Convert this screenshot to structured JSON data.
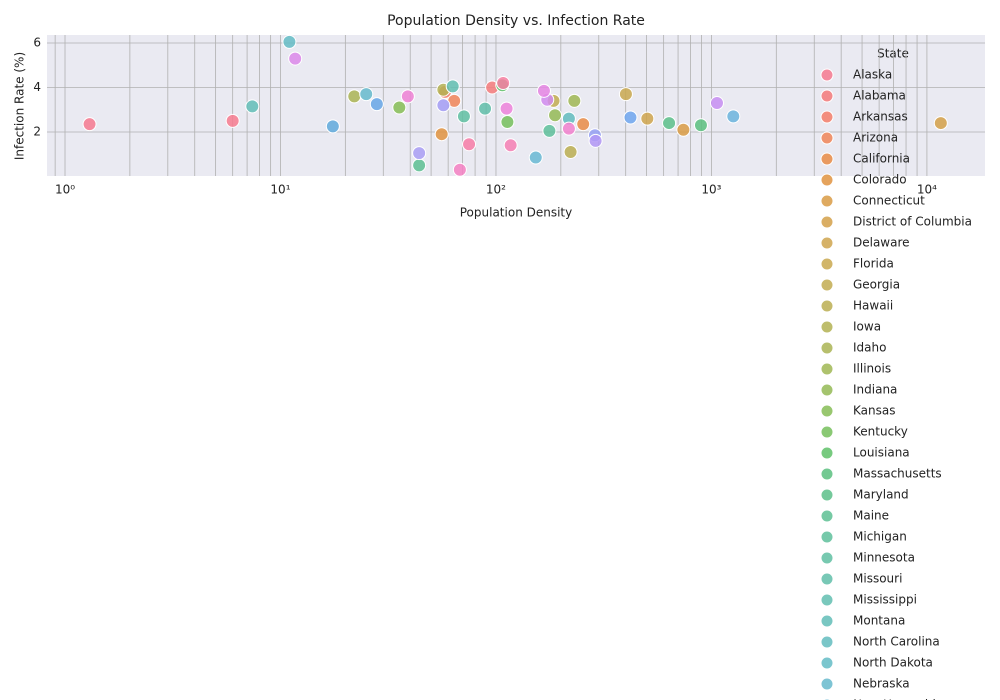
{
  "chart_data": {
    "type": "scatter",
    "title": "Population Density vs. Infection Rate",
    "x_label": "Population Density",
    "y_label": "Infection Rate (%)",
    "x_scale": "log",
    "xlim": [
      0.825,
      18600
    ],
    "ylim": [
      0.02,
      6.36
    ],
    "xticks": [
      {
        "value": 1,
        "label": "10⁰"
      },
      {
        "value": 10,
        "label": "10¹"
      },
      {
        "value": 100,
        "label": "10²"
      },
      {
        "value": 1000,
        "label": "10³"
      },
      {
        "value": 10000,
        "label": "10⁴"
      }
    ],
    "xminorticks": [
      0.9,
      2,
      3,
      4,
      5,
      6,
      7,
      8,
      9,
      20,
      30,
      40,
      50,
      60,
      70,
      80,
      90,
      200,
      300,
      400,
      500,
      600,
      700,
      800,
      900,
      2000,
      3000,
      4000,
      5000,
      6000,
      7000,
      8000,
      9000
    ],
    "yticks": [
      2,
      4,
      6
    ],
    "grid": true,
    "legend_title": "State",
    "legend_position": "right",
    "series": [
      {
        "name": "Alaska",
        "color": "#f6798f",
        "x": [
          1.3
        ],
        "values": [
          2.35
        ]
      },
      {
        "name": "Alabama",
        "color": "#f57a7a",
        "x": [
          96
        ],
        "values": [
          4.0
        ]
      },
      {
        "name": "Arkansas",
        "color": "#f47e6a",
        "x": [
          58
        ],
        "values": [
          3.8
        ]
      },
      {
        "name": "Arizona",
        "color": "#f08558",
        "x": [
          64
        ],
        "values": [
          3.4
        ]
      },
      {
        "name": "California",
        "color": "#e98c47",
        "x": [
          254
        ],
        "values": [
          2.35
        ]
      },
      {
        "name": "Colorado",
        "color": "#e0933f",
        "x": [
          56
        ],
        "values": [
          1.9
        ]
      },
      {
        "name": "Connecticut",
        "color": "#d99b44",
        "x": [
          741
        ],
        "values": [
          2.1
        ]
      },
      {
        "name": "District of Columbia",
        "color": "#d4a049",
        "x": [
          11600
        ],
        "values": [
          2.4
        ]
      },
      {
        "name": "Delaware",
        "color": "#cfa44d",
        "x": [
          504
        ],
        "values": [
          2.6
        ]
      },
      {
        "name": "Florida",
        "color": "#c9a84f",
        "x": [
          401
        ],
        "values": [
          3.7
        ]
      },
      {
        "name": "Georgia",
        "color": "#c2ab50",
        "x": [
          185
        ],
        "values": [
          3.4
        ]
      },
      {
        "name": "Hawaii",
        "color": "#bbae51",
        "x": [
          222
        ],
        "values": [
          1.1
        ]
      },
      {
        "name": "Iowa",
        "color": "#b3b152",
        "x": [
          57
        ],
        "values": [
          3.9
        ]
      },
      {
        "name": "Idaho",
        "color": "#aab453",
        "x": [
          22
        ],
        "values": [
          3.6
        ]
      },
      {
        "name": "Illinois",
        "color": "#a0b754",
        "x": [
          231
        ],
        "values": [
          3.4
        ]
      },
      {
        "name": "Indiana",
        "color": "#94ba55",
        "x": [
          188
        ],
        "values": [
          2.75
        ]
      },
      {
        "name": "Kansas",
        "color": "#86bd56",
        "x": [
          35.6
        ],
        "values": [
          3.1
        ]
      },
      {
        "name": "Kentucky",
        "color": "#75bf5c",
        "x": [
          113
        ],
        "values": [
          2.45
        ]
      },
      {
        "name": "Louisiana",
        "color": "#5fc168",
        "x": [
          107
        ],
        "values": [
          4.1
        ]
      },
      {
        "name": "Massachusetts",
        "color": "#5bbf7f",
        "x": [
          894
        ],
        "values": [
          2.3
        ]
      },
      {
        "name": "Maryland",
        "color": "#5cbf8a",
        "x": [
          636
        ],
        "values": [
          2.4
        ]
      },
      {
        "name": "Maine",
        "color": "#5dbf93",
        "x": [
          44
        ],
        "values": [
          0.5
        ]
      },
      {
        "name": "Michigan",
        "color": "#5ebf9b",
        "x": [
          177
        ],
        "values": [
          2.05
        ]
      },
      {
        "name": "Minnesota",
        "color": "#5fbfa2",
        "x": [
          71
        ],
        "values": [
          2.7
        ]
      },
      {
        "name": "Missouri",
        "color": "#60bea9",
        "x": [
          89
        ],
        "values": [
          3.05
        ]
      },
      {
        "name": "Mississippi",
        "color": "#61beb0",
        "x": [
          63
        ],
        "values": [
          4.05
        ]
      },
      {
        "name": "Montana",
        "color": "#62bdb7",
        "x": [
          7.4
        ],
        "values": [
          3.15
        ]
      },
      {
        "name": "North Carolina",
        "color": "#63bcbe",
        "x": [
          218
        ],
        "values": [
          2.6
        ]
      },
      {
        "name": "North Dakota",
        "color": "#64bcc5",
        "x": [
          11
        ],
        "values": [
          6.05
        ]
      },
      {
        "name": "Nebraska",
        "color": "#66bacc",
        "x": [
          25
        ],
        "values": [
          3.7
        ]
      },
      {
        "name": "New Hampshire",
        "color": "#68b8d4",
        "x": [
          153
        ],
        "values": [
          0.85
        ]
      },
      {
        "color": "#6bb4dd",
        "x": [
          1263
        ],
        "values": [
          2.7
        ]
      },
      {
        "color": "#5fa9dc",
        "x": [
          17.5
        ],
        "values": [
          2.25
        ]
      },
      {
        "color": "#66a6e6",
        "x": [
          28
        ],
        "values": [
          3.25
        ]
      },
      {
        "color": "#6fa6ee",
        "x": [
          421
        ],
        "values": [
          2.65
        ]
      },
      {
        "color": "#95a0f4",
        "x": [
          288
        ],
        "values": [
          1.85
        ]
      },
      {
        "color": "#a39cf4",
        "x": [
          57
        ],
        "values": [
          3.2
        ]
      },
      {
        "color": "#a99df4",
        "x": [
          44
        ],
        "values": [
          1.05
        ]
      },
      {
        "color": "#b197f4",
        "x": [
          290
        ],
        "values": [
          1.6
        ]
      },
      {
        "color": "#c78ef2",
        "x": [
          1061
        ],
        "values": [
          3.3
        ]
      },
      {
        "color": "#d18bef",
        "x": [
          173
        ],
        "values": [
          3.45
        ]
      },
      {
        "color": "#dc88ea",
        "x": [
          11.7
        ],
        "values": [
          5.3
        ]
      },
      {
        "color": "#e585e3",
        "x": [
          167
        ],
        "values": [
          3.85
        ]
      },
      {
        "color": "#ed83da",
        "x": [
          112
        ],
        "values": [
          3.05
        ]
      },
      {
        "color": "#ef81d5",
        "x": [
          39
        ],
        "values": [
          3.6
        ]
      },
      {
        "color": "#f281cf",
        "x": [
          218
        ],
        "values": [
          2.15
        ]
      },
      {
        "color": "#f580c3",
        "x": [
          68
        ],
        "values": [
          0.3
        ]
      },
      {
        "color": "#f67fb4",
        "x": [
          117
        ],
        "values": [
          1.4
        ]
      },
      {
        "color": "#f77ea1",
        "x": [
          108
        ],
        "values": [
          4.2
        ]
      },
      {
        "color": "#f77da7",
        "x": [
          75
        ],
        "values": [
          1.45
        ]
      },
      {
        "color": "#f77b8f",
        "x": [
          6
        ],
        "values": [
          2.5
        ]
      }
    ]
  }
}
